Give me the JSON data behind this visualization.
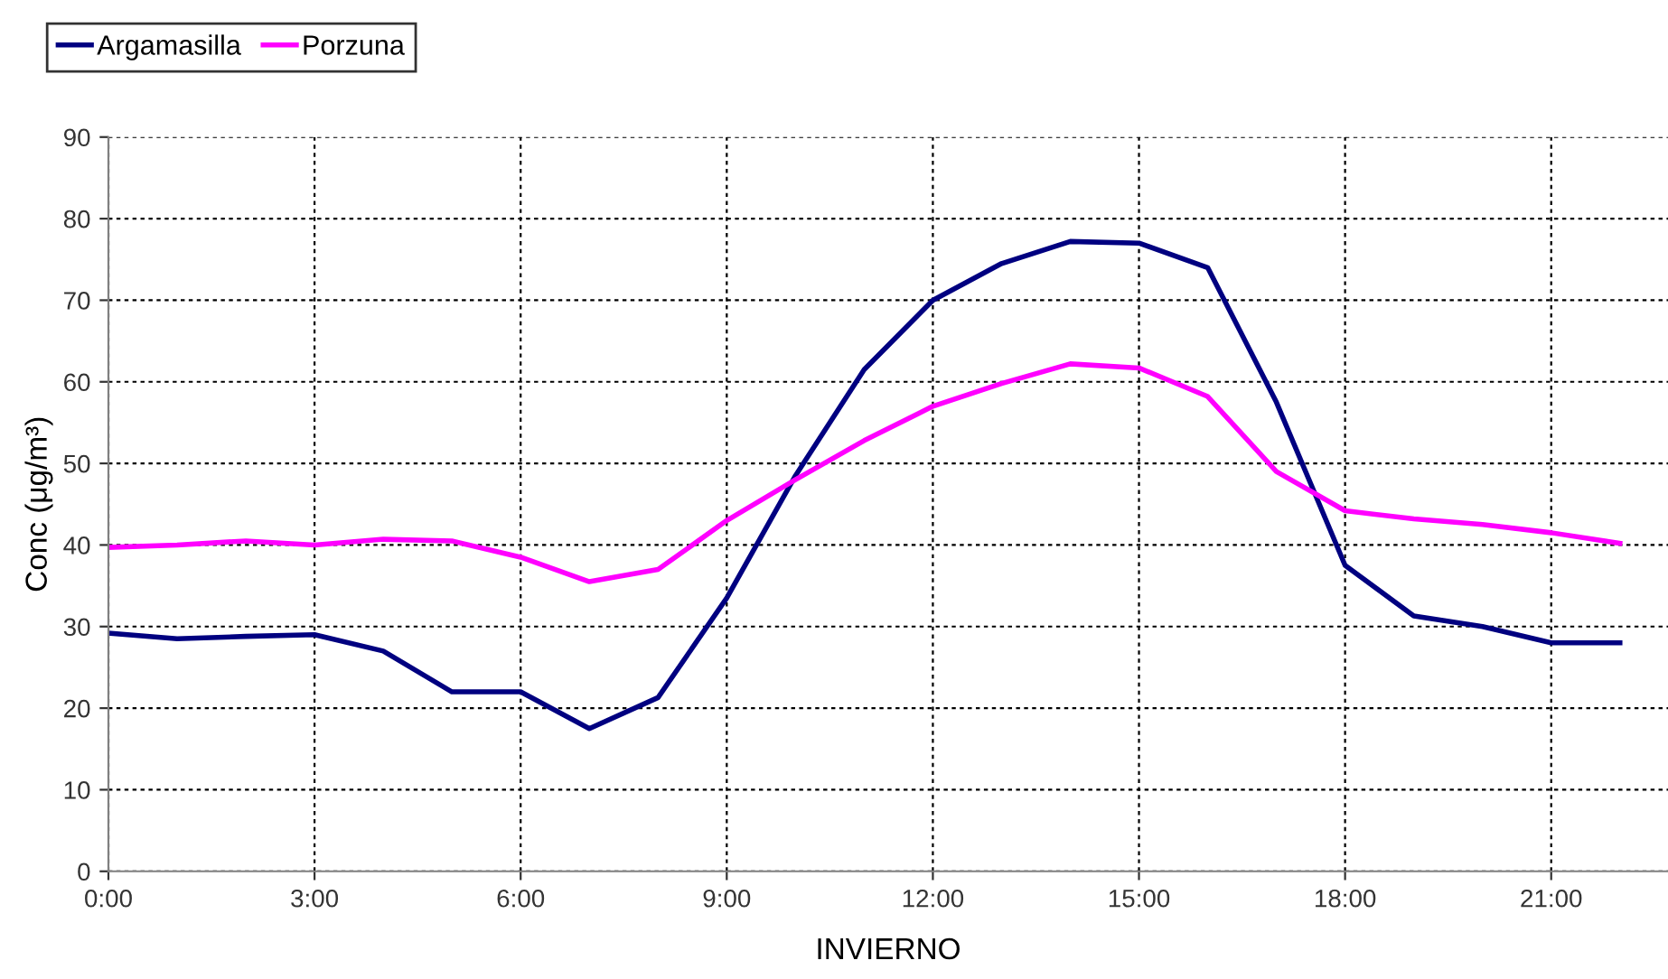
{
  "chart_data": {
    "type": "line",
    "xlabel": "INVIERNO",
    "ylabel": "Conc (μg/m³)",
    "x": [
      0,
      1,
      2,
      3,
      4,
      5,
      6,
      7,
      8,
      9,
      10,
      11,
      12,
      13,
      14,
      15,
      16,
      17,
      18,
      19,
      20,
      21,
      22
    ],
    "series": [
      {
        "name": "Argamasilla",
        "color": "#000080",
        "values": [
          29.2,
          28.5,
          28.8,
          29,
          27,
          22,
          22,
          17.5,
          21.3,
          33.5,
          48.5,
          61.5,
          70,
          74.5,
          77.2,
          77,
          74,
          57.5,
          37.5,
          31.3,
          30,
          28,
          28
        ]
      },
      {
        "name": "Porzuna",
        "color": "#ff00ff",
        "values": [
          39.7,
          40,
          40.5,
          40,
          40.7,
          40.5,
          38.5,
          35.5,
          37,
          43,
          48,
          52.8,
          57,
          59.8,
          62.2,
          61.7,
          58.2,
          49,
          44.2,
          43.2,
          42.5,
          41.5,
          40.2
        ]
      }
    ],
    "xlim": [
      0,
      22.7
    ],
    "ylim": [
      0,
      90
    ],
    "xticks": [
      {
        "value": 0,
        "label": "0:00"
      },
      {
        "value": 3,
        "label": "3:00"
      },
      {
        "value": 6,
        "label": "6:00"
      },
      {
        "value": 9,
        "label": "9:00"
      },
      {
        "value": 12,
        "label": "12:00"
      },
      {
        "value": 15,
        "label": "15:00"
      },
      {
        "value": 18,
        "label": "18:00"
      },
      {
        "value": 21,
        "label": "21:00"
      }
    ],
    "yticks": [
      0,
      10,
      20,
      30,
      40,
      50,
      60,
      70,
      80,
      90
    ],
    "grid": true,
    "legend": "top left",
    "marker": "none",
    "line_style": "solid"
  }
}
